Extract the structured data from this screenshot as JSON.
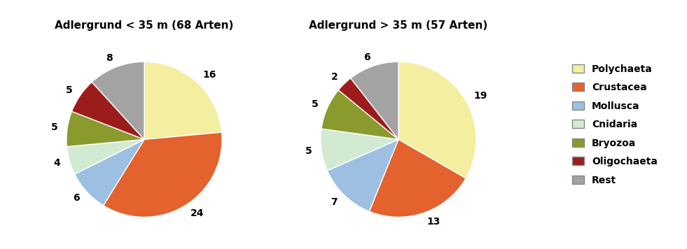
{
  "chart_data": [
    {
      "type": "pie",
      "title": "Adlergrund < 35 m (68 Arten)",
      "categories": [
        "Polychaeta",
        "Crustacea",
        "Mollusca",
        "Cnidaria",
        "Bryozoa",
        "Oligochaeta",
        "Rest"
      ],
      "values": [
        16,
        24,
        6,
        4,
        5,
        5,
        8
      ],
      "colors": [
        "#f3eea0",
        "#e4622e",
        "#9cbfe2",
        "#d3ead2",
        "#8a9a2c",
        "#9c1c1c",
        "#a3a3a3"
      ],
      "data_labels": true
    },
    {
      "type": "pie",
      "title": "Adlergrund > 35 m (57 Arten)",
      "categories": [
        "Polychaeta",
        "Crustacea",
        "Mollusca",
        "Cnidaria",
        "Bryozoa",
        "Oligochaeta",
        "Rest"
      ],
      "values": [
        19,
        13,
        7,
        5,
        5,
        2,
        6
      ],
      "colors": [
        "#f3eea0",
        "#e4622e",
        "#9cbfe2",
        "#d3ead2",
        "#8a9a2c",
        "#9c1c1c",
        "#a3a3a3"
      ],
      "data_labels": true,
      "legend": "center right"
    }
  ]
}
